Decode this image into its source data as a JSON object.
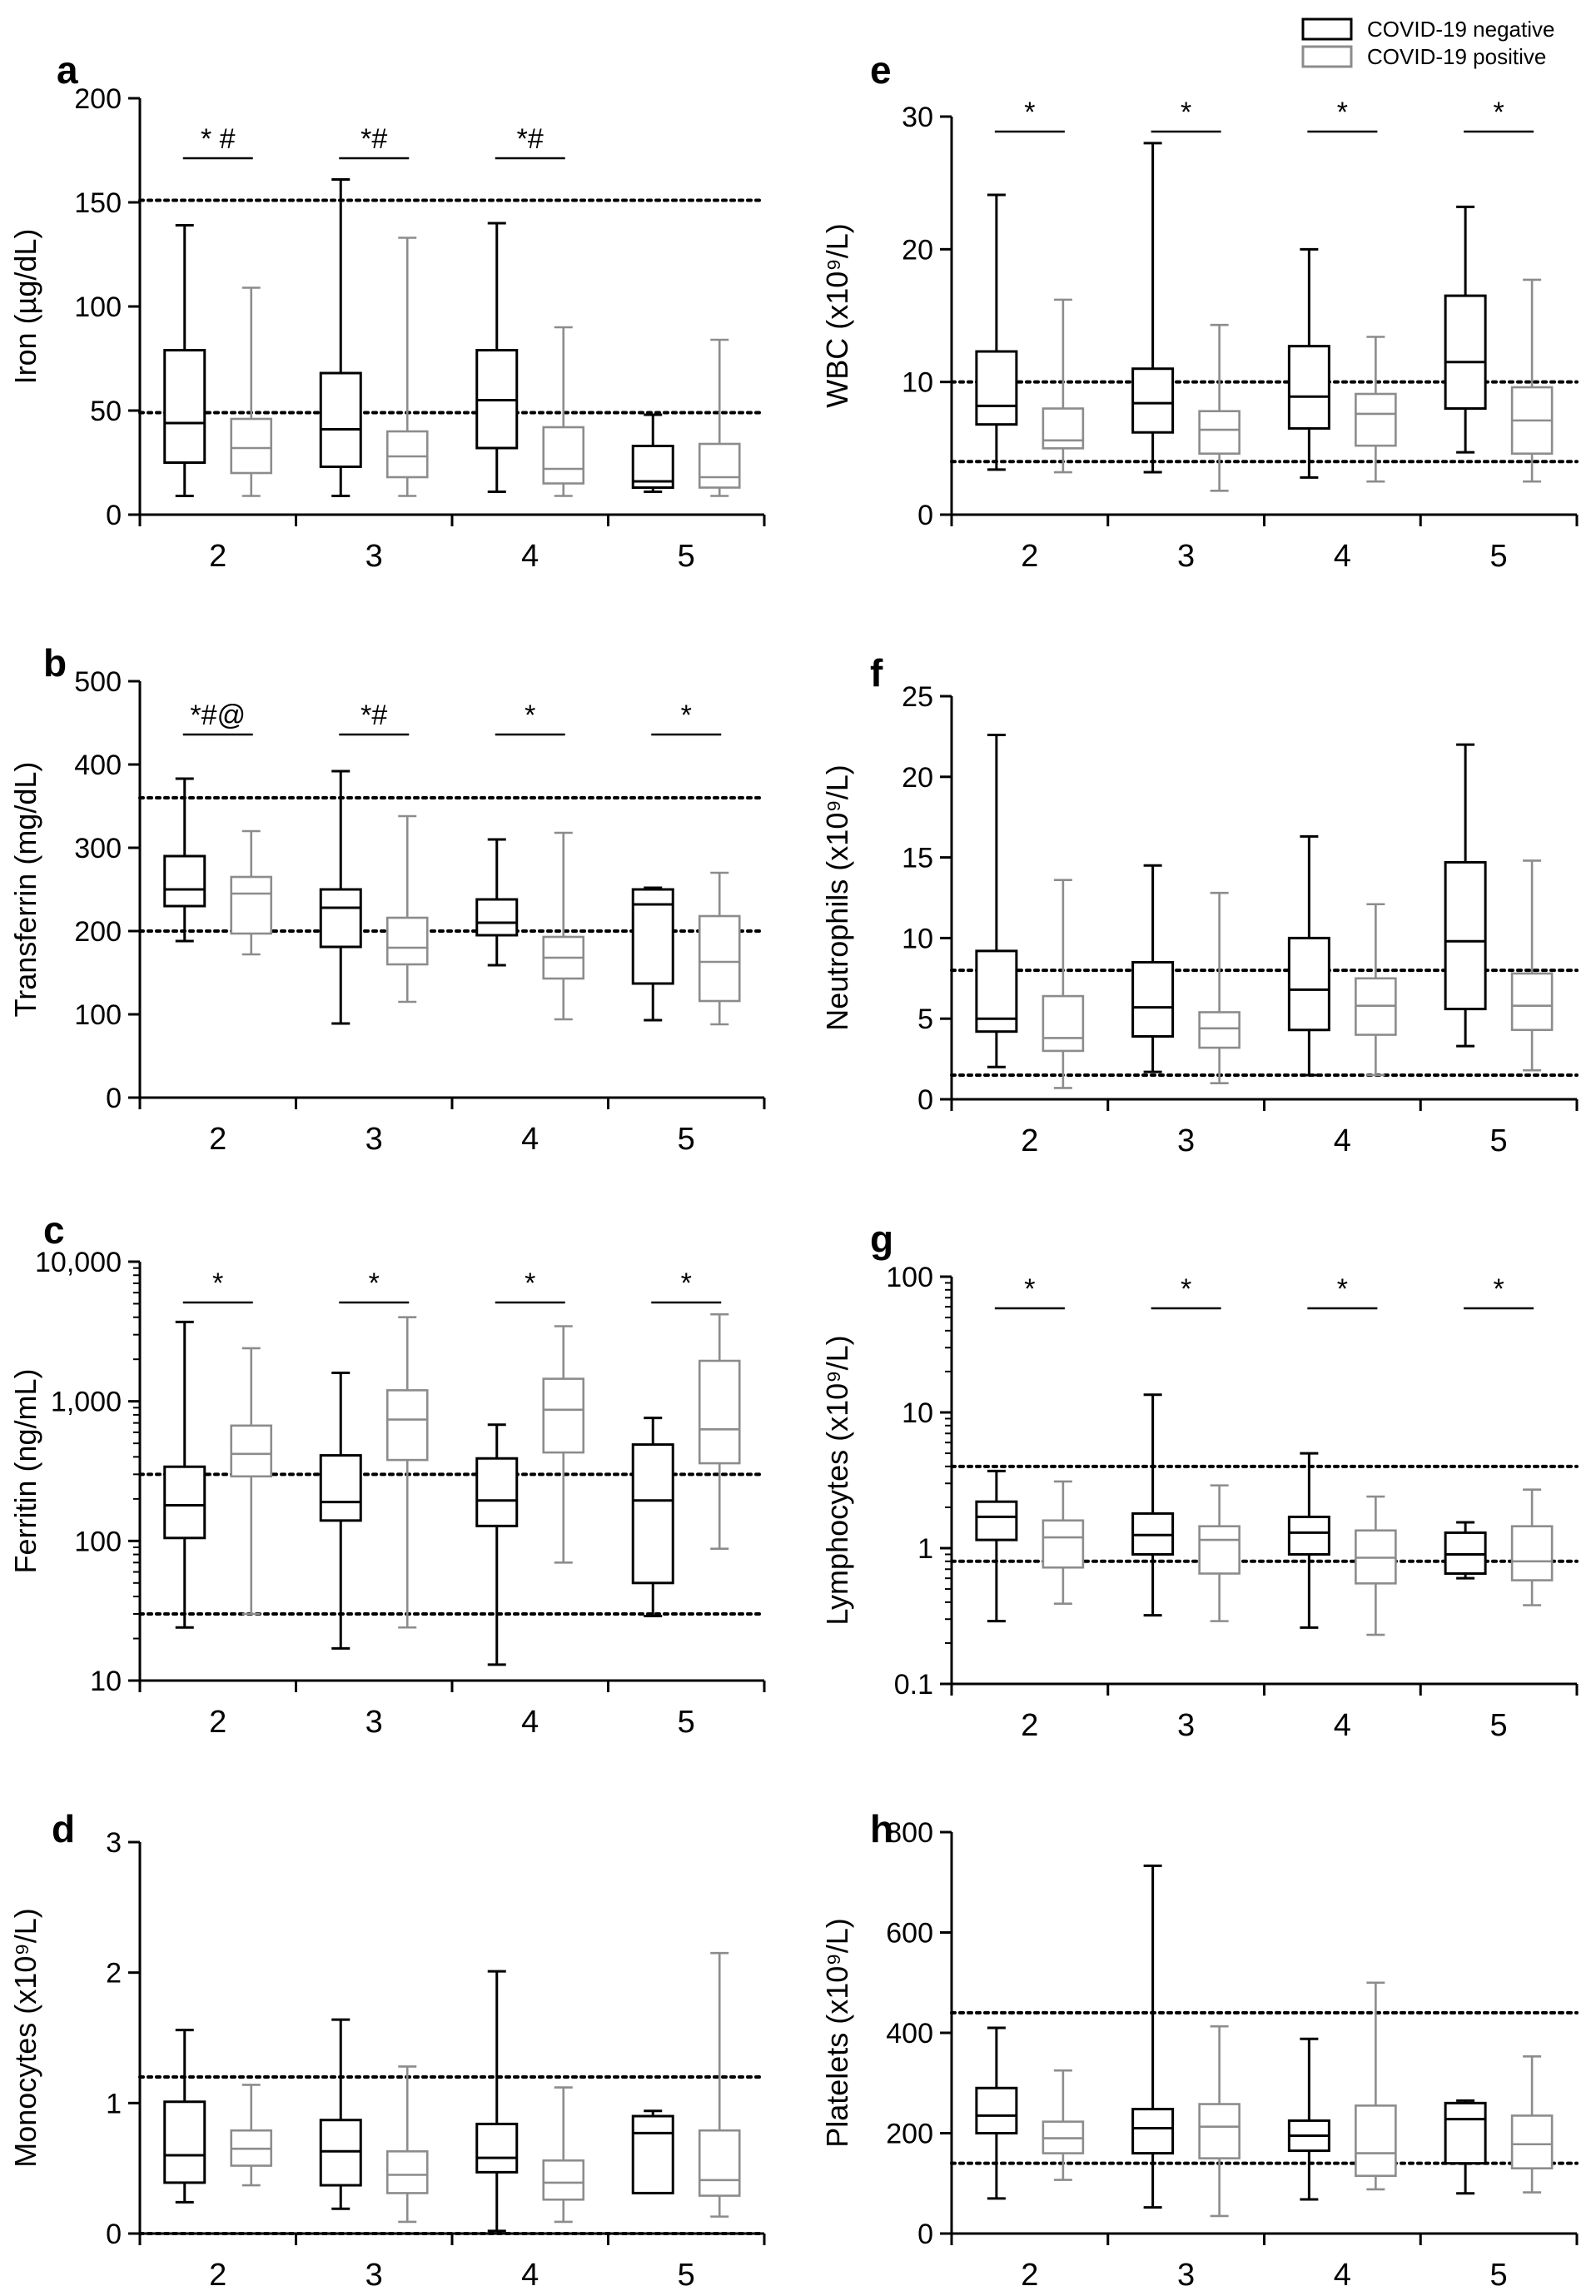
{
  "legend": {
    "entries": [
      {
        "name": "COVID-19 negative",
        "color": "#000000"
      },
      {
        "name": "COVID-19 positive",
        "color": "#8c8c8c"
      }
    ],
    "position": "top-right"
  },
  "chart_data": [
    {
      "id": "a",
      "letter": "a",
      "type": "box",
      "scale": "linear",
      "ylabel": "Iron (µg/dL)",
      "ylim": [
        0,
        200
      ],
      "yticks": [
        0,
        50,
        100,
        150,
        200
      ],
      "ytick_labels": [
        "0",
        "50",
        "100",
        "150",
        "200"
      ],
      "categories": [
        "2",
        "3",
        "4",
        "5"
      ],
      "ref_lines": [
        49,
        151
      ],
      "significance": [
        {
          "category": "2",
          "label": "* #"
        },
        {
          "category": "3",
          "label": "*#"
        },
        {
          "category": "4",
          "label": "*#"
        }
      ],
      "series": [
        {
          "name": "COVID-19 negative",
          "boxes": [
            [
              9,
              25,
              44,
              79,
              139
            ],
            [
              9,
              23,
              41,
              68,
              161
            ],
            [
              11,
              32,
              55,
              79,
              140
            ],
            [
              11,
              13,
              16,
              33,
              48
            ]
          ]
        },
        {
          "name": "COVID-19 positive",
          "boxes": [
            [
              9,
              20,
              32,
              46,
              109
            ],
            [
              9,
              18,
              28,
              40,
              133
            ],
            [
              9,
              15,
              22,
              42,
              90
            ],
            [
              9,
              13,
              18,
              34,
              84
            ]
          ]
        }
      ]
    },
    {
      "id": "b",
      "letter": "b",
      "type": "box",
      "scale": "linear",
      "ylabel": "Transferrin (mg/dL)",
      "ylim": [
        0,
        500
      ],
      "yticks": [
        0,
        100,
        200,
        300,
        400,
        500
      ],
      "ytick_labels": [
        "0",
        "100",
        "200",
        "300",
        "400",
        "500"
      ],
      "categories": [
        "2",
        "3",
        "4",
        "5"
      ],
      "ref_lines": [
        200,
        360
      ],
      "significance": [
        {
          "category": "2",
          "label": "*#@"
        },
        {
          "category": "3",
          "label": "*#"
        },
        {
          "category": "4",
          "label": "*"
        },
        {
          "category": "5",
          "label": "*"
        }
      ],
      "series": [
        {
          "name": "COVID-19 negative",
          "boxes": [
            [
              188,
              230,
              250,
              290,
              383
            ],
            [
              89,
              181,
              228,
              250,
              392
            ],
            [
              159,
              195,
              210,
              238,
              310
            ],
            [
              93,
              137,
              232,
              250,
              252
            ]
          ]
        },
        {
          "name": "COVID-19 positive",
          "boxes": [
            [
              172,
              197,
              245,
              265,
              320
            ],
            [
              115,
              160,
              180,
              216,
              338
            ],
            [
              94,
              143,
              168,
              193,
              318
            ],
            [
              88,
              116,
              163,
              218,
              270
            ]
          ]
        }
      ]
    },
    {
      "id": "c",
      "letter": "c",
      "type": "box",
      "scale": "log",
      "ylabel": "Ferritin (ng/mL)",
      "ylim": [
        10,
        10000
      ],
      "yticks": [
        10,
        100,
        1000,
        10000
      ],
      "ytick_labels": [
        "10",
        "100",
        "1,000",
        "10,000"
      ],
      "categories": [
        "2",
        "3",
        "4",
        "5"
      ],
      "ref_lines": [
        30,
        300
      ],
      "significance": [
        {
          "category": "2",
          "label": "*"
        },
        {
          "category": "3",
          "label": "*"
        },
        {
          "category": "4",
          "label": "*"
        },
        {
          "category": "5",
          "label": "*"
        }
      ],
      "series": [
        {
          "name": "COVID-19 negative",
          "boxes": [
            [
              24,
              105,
              180,
              340,
              3700
            ],
            [
              17,
              140,
              190,
              410,
              1600
            ],
            [
              13,
              128,
              195,
              390,
              680
            ],
            [
              29,
              50,
              195,
              490,
              760
            ]
          ]
        },
        {
          "name": "COVID-19 positive",
          "boxes": [
            [
              30,
              290,
              420,
              670,
              2400
            ],
            [
              24,
              380,
              740,
              1200,
              4000
            ],
            [
              70,
              430,
              870,
              1450,
              3450
            ],
            [
              88,
              360,
              630,
              1950,
              4200
            ]
          ]
        }
      ]
    },
    {
      "id": "d",
      "letter": "d",
      "type": "box",
      "scale": "linear",
      "ylabel": "Monocytes (x10⁹/L)",
      "ylim": [
        0,
        3
      ],
      "yticks": [
        0,
        1,
        2,
        3
      ],
      "ytick_labels": [
        "0",
        "1",
        "2",
        "3"
      ],
      "categories": [
        "2",
        "3",
        "4",
        "5"
      ],
      "ref_lines": [
        0,
        1.2
      ],
      "significance": [],
      "series": [
        {
          "name": "COVID-19 negative",
          "boxes": [
            [
              0.24,
              0.39,
              0.6,
              1.01,
              1.56
            ],
            [
              0.19,
              0.37,
              0.63,
              0.87,
              1.64
            ],
            [
              0.02,
              0.47,
              0.58,
              0.84,
              2.01
            ],
            [
              0.31,
              0.31,
              0.77,
              0.9,
              0.94
            ]
          ]
        },
        {
          "name": "COVID-19 positive",
          "boxes": [
            [
              0.37,
              0.52,
              0.65,
              0.79,
              1.14
            ],
            [
              0.09,
              0.31,
              0.45,
              0.63,
              1.28
            ],
            [
              0.09,
              0.26,
              0.39,
              0.56,
              1.12
            ],
            [
              0.13,
              0.29,
              0.41,
              0.79,
              2.15
            ]
          ]
        }
      ]
    },
    {
      "id": "e",
      "letter": "e",
      "type": "box",
      "scale": "linear",
      "ylabel": "WBC (x10⁹/L)",
      "ylim": [
        0,
        30
      ],
      "yticks": [
        0,
        10,
        20,
        30
      ],
      "ytick_labels": [
        "0",
        "10",
        "20",
        "30"
      ],
      "categories": [
        "2",
        "3",
        "4",
        "5"
      ],
      "ref_lines": [
        4,
        10
      ],
      "significance": [
        {
          "category": "2",
          "label": "*"
        },
        {
          "category": "3",
          "label": "*"
        },
        {
          "category": "4",
          "label": "*"
        },
        {
          "category": "5",
          "label": "*"
        }
      ],
      "series": [
        {
          "name": "COVID-19 negative",
          "boxes": [
            [
              3.4,
              6.8,
              8.2,
              12.3,
              24.1
            ],
            [
              3.2,
              6.2,
              8.4,
              11.0,
              28.0
            ],
            [
              2.8,
              6.5,
              8.9,
              12.7,
              20.0
            ],
            [
              4.7,
              8.0,
              11.5,
              16.5,
              23.2
            ]
          ]
        },
        {
          "name": "COVID-19 positive",
          "boxes": [
            [
              3.2,
              5.0,
              5.6,
              8.0,
              16.2
            ],
            [
              1.8,
              4.6,
              6.4,
              7.8,
              14.3
            ],
            [
              2.5,
              5.2,
              7.6,
              9.1,
              13.4
            ],
            [
              2.5,
              4.6,
              7.1,
              9.6,
              17.7
            ]
          ]
        }
      ]
    },
    {
      "id": "f",
      "letter": "f",
      "type": "box",
      "scale": "linear",
      "ylabel": "Neutrophils (x10⁹/L)",
      "ylim": [
        0,
        25
      ],
      "yticks": [
        0,
        5,
        10,
        15,
        20,
        25
      ],
      "ytick_labels": [
        "0",
        "5",
        "10",
        "15",
        "20",
        "25"
      ],
      "categories": [
        "2",
        "3",
        "4",
        "5"
      ],
      "ref_lines": [
        1.5,
        8
      ],
      "significance": [],
      "series": [
        {
          "name": "COVID-19 negative",
          "boxes": [
            [
              2.0,
              4.2,
              5.0,
              9.2,
              22.6
            ],
            [
              1.7,
              3.9,
              5.7,
              8.5,
              14.5
            ],
            [
              1.5,
              4.3,
              6.8,
              10.0,
              16.3
            ],
            [
              3.3,
              5.6,
              9.8,
              14.7,
              22.0
            ]
          ]
        },
        {
          "name": "COVID-19 positive",
          "boxes": [
            [
              0.7,
              3.0,
              3.8,
              6.4,
              13.6
            ],
            [
              1.0,
              3.2,
              4.4,
              5.4,
              12.8
            ],
            [
              1.5,
              4.0,
              5.8,
              7.5,
              12.1
            ],
            [
              1.8,
              4.3,
              5.8,
              7.8,
              14.8
            ]
          ]
        }
      ]
    },
    {
      "id": "g",
      "letter": "g",
      "type": "box",
      "scale": "log",
      "ylabel": "Lymphocytes (x10⁹/L)",
      "ylim": [
        0.1,
        100
      ],
      "yticks": [
        0.1,
        1,
        10,
        100
      ],
      "ytick_labels": [
        "0.1",
        "1",
        "10",
        "100"
      ],
      "categories": [
        "2",
        "3",
        "4",
        "5"
      ],
      "ref_lines": [
        0.8,
        4
      ],
      "significance": [
        {
          "category": "2",
          "label": "*"
        },
        {
          "category": "3",
          "label": "*"
        },
        {
          "category": "4",
          "label": "*"
        },
        {
          "category": "5",
          "label": "*"
        }
      ],
      "series": [
        {
          "name": "COVID-19 negative",
          "boxes": [
            [
              0.29,
              1.15,
              1.7,
              2.2,
              3.7
            ],
            [
              0.32,
              0.9,
              1.25,
              1.8,
              13.5
            ],
            [
              0.26,
              0.9,
              1.3,
              1.7,
              5.0
            ],
            [
              0.6,
              0.65,
              0.9,
              1.3,
              1.55
            ]
          ]
        },
        {
          "name": "COVID-19 positive",
          "boxes": [
            [
              0.39,
              0.72,
              1.2,
              1.6,
              3.1
            ],
            [
              0.29,
              0.65,
              1.15,
              1.45,
              2.9
            ],
            [
              0.23,
              0.55,
              0.85,
              1.35,
              2.4
            ],
            [
              0.38,
              0.58,
              0.8,
              1.45,
              2.7
            ]
          ]
        }
      ]
    },
    {
      "id": "h",
      "letter": "h",
      "type": "box",
      "scale": "linear",
      "ylabel": "Platelets (x10⁹/L)",
      "ylim": [
        0,
        800
      ],
      "yticks": [
        0,
        200,
        400,
        600,
        800
      ],
      "ytick_labels": [
        "0",
        "200",
        "400",
        "600",
        "800"
      ],
      "categories": [
        "2",
        "3",
        "4",
        "5"
      ],
      "ref_lines": [
        140,
        440
      ],
      "significance": [],
      "series": [
        {
          "name": "COVID-19 negative",
          "boxes": [
            [
              70,
              200,
              235,
              290,
              410
            ],
            [
              52,
              160,
              210,
              248,
              733
            ],
            [
              68,
              165,
              195,
              225,
              388
            ],
            [
              80,
              140,
              228,
              260,
              265
            ]
          ]
        },
        {
          "name": "COVID-19 positive",
          "boxes": [
            [
              107,
              160,
              190,
              223,
              325
            ],
            [
              35,
              150,
              213,
              258,
              413
            ],
            [
              88,
              115,
              160,
              255,
              500
            ],
            [
              82,
              130,
              178,
              235,
              353
            ]
          ]
        }
      ]
    }
  ]
}
